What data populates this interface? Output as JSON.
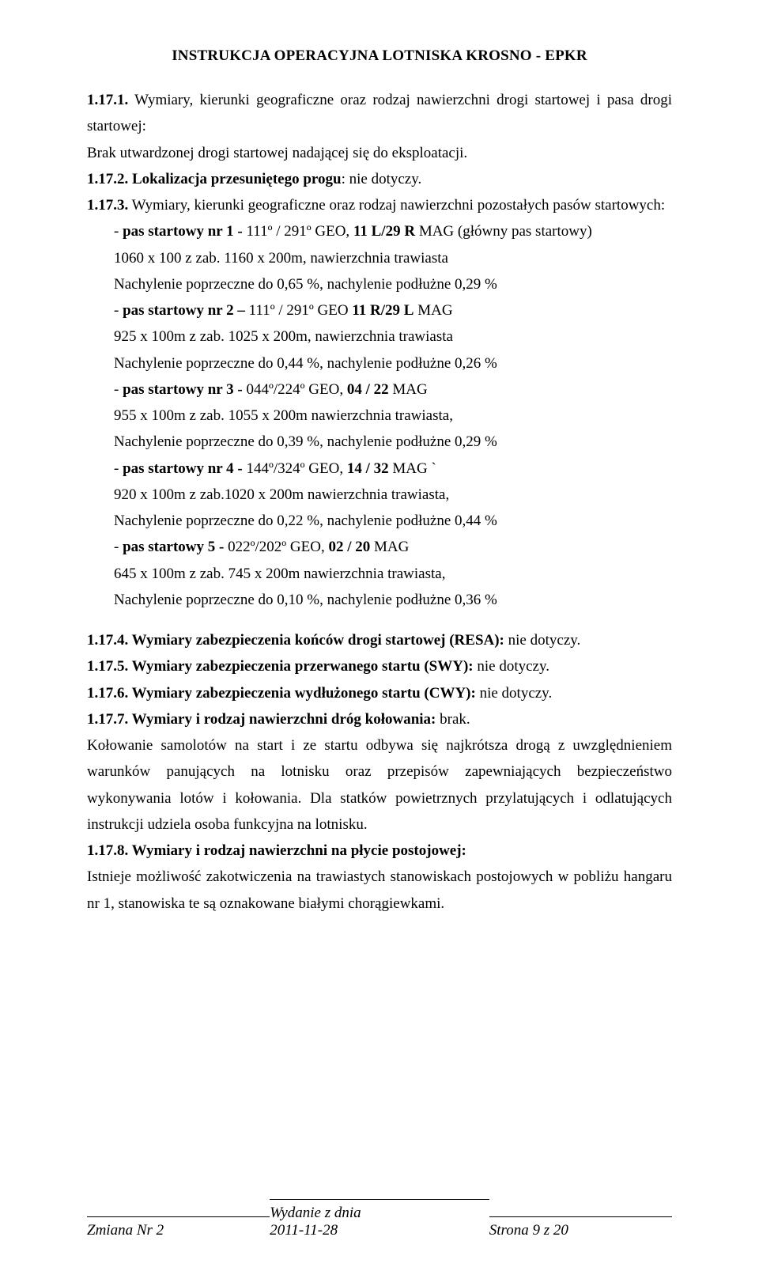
{
  "header": "INSTRUKCJA  OPERACYJNA  LOTNISKA    KROSNO   - EPKR",
  "s1_17_1": {
    "lead_num": "1.17.1.",
    "lead": " Wymiary, kierunki geograficzne oraz rodzaj nawierzchni drogi startowej i pasa drogi startowej:",
    "body": "Brak utwardzonej drogi startowej nadającej się do eksploatacji."
  },
  "s1_17_2": {
    "num": "1.17.2.",
    "title": " Lokalizacja przesuniętego progu",
    "tail": ": nie dotyczy."
  },
  "s1_17_3": {
    "num": "1.17.3.",
    "lead": " Wymiary, kierunki geograficzne oraz rodzaj nawierzchni pozostałych pasów startowych",
    "tail": ":",
    "r1": {
      "l1a": "- ",
      "l1b": "pas startowy nr 1 - ",
      "l1c": "111º / 291º GEO, ",
      "l1d": "11 L/29 R",
      "l1e": " MAG (główny pas startowy)",
      "l2": "  1060 x 100 z zab. 1160 x 200m, nawierzchnia trawiasta",
      "l3": "  Nachylenie poprzeczne do 0,65 %, nachylenie podłużne 0,29 %"
    },
    "r2": {
      "l1a": "- ",
      "l1b": "pas startowy nr 2 – ",
      "l1c": "111º / 291º GEO ",
      "l1d": "11 R/29 L",
      "l1e": " MAG",
      "l2": "  925 x 100m z zab. 1025 x 200m, nawierzchnia trawiasta",
      "l3": "  Nachylenie poprzeczne do 0,44 %, nachylenie podłużne 0,26 %"
    },
    "r3": {
      "l1a": "- ",
      "l1b": "pas startowy nr 3 - ",
      "l1c": "044º/224º GEO, ",
      "l1d": "04 / 22",
      "l1e": " MAG",
      "l2": "  955 x 100m z zab. 1055 x 200m nawierzchnia trawiasta,",
      "l3": "  Nachylenie poprzeczne do 0,39 %, nachylenie podłużne 0,29 %"
    },
    "r4": {
      "l1a": "- ",
      "l1b": "pas startowy nr 4 - ",
      "l1c": "144º/324º GEO, ",
      "l1d": "14 / 32",
      "l1e": " MAG `",
      "l2": "  920 x 100m z zab.1020 x 200m nawierzchnia trawiasta,",
      "l3": "  Nachylenie poprzeczne do 0,22 %, nachylenie podłużne 0,44 %"
    },
    "r5": {
      "l1a": "- ",
      "l1b": "pas startowy 5 - ",
      "l1c": "022º/202º GEO, ",
      "l1d": "02 / 20",
      "l1e": " MAG",
      "l2": "  645 x 100m z zab. 745 x 200m nawierzchnia trawiasta,",
      "l3": "  Nachylenie poprzeczne do 0,10 %, nachylenie podłużne 0,36 %"
    }
  },
  "s1_17_4": {
    "num": "1.17.4.",
    "title": " Wymiary zabezpieczenia końców drogi startowej (RESA):",
    "tail": " nie dotyczy."
  },
  "s1_17_5": {
    "num": "1.17.5.",
    "title": " Wymiary zabezpieczenia przerwanego startu (SWY):",
    "tail": " nie dotyczy."
  },
  "s1_17_6": {
    "num": "1.17.6.",
    "title": " Wymiary zabezpieczenia wydłużonego startu (CWY):",
    "tail": " nie dotyczy."
  },
  "s1_17_7": {
    "num": "1.17.7.",
    "title": " Wymiary i rodzaj nawierzchni dróg kołowania:",
    "tail": " brak.",
    "body": "Kołowanie samolotów na start i ze startu odbywa się najkrótsza drogą z uwzględnieniem warunków panujących na lotnisku oraz przepisów zapewniających bezpieczeństwo wykonywania lotów i kołowania. Dla statków powietrznych przylatujących i odlatujących instrukcji udziela osoba funkcyjna na lotnisku."
  },
  "s1_17_8": {
    "num": "1.17.8.",
    "title": " Wymiary i rodzaj nawierzchni na płycie postojowej:",
    "body": "Istnieje możliwość zakotwiczenia na trawiastych stanowiskach postojowych w pobliżu hangaru nr 1, stanowiska te są oznakowane białymi chorągiewkami."
  },
  "footer": {
    "left": "Zmiana Nr 2",
    "mid_l1": "Wydanie z dnia",
    "mid_l2": "2011-11-28",
    "right_pre": "Strona ",
    "right_num": "9",
    "right_post": " z 20"
  }
}
